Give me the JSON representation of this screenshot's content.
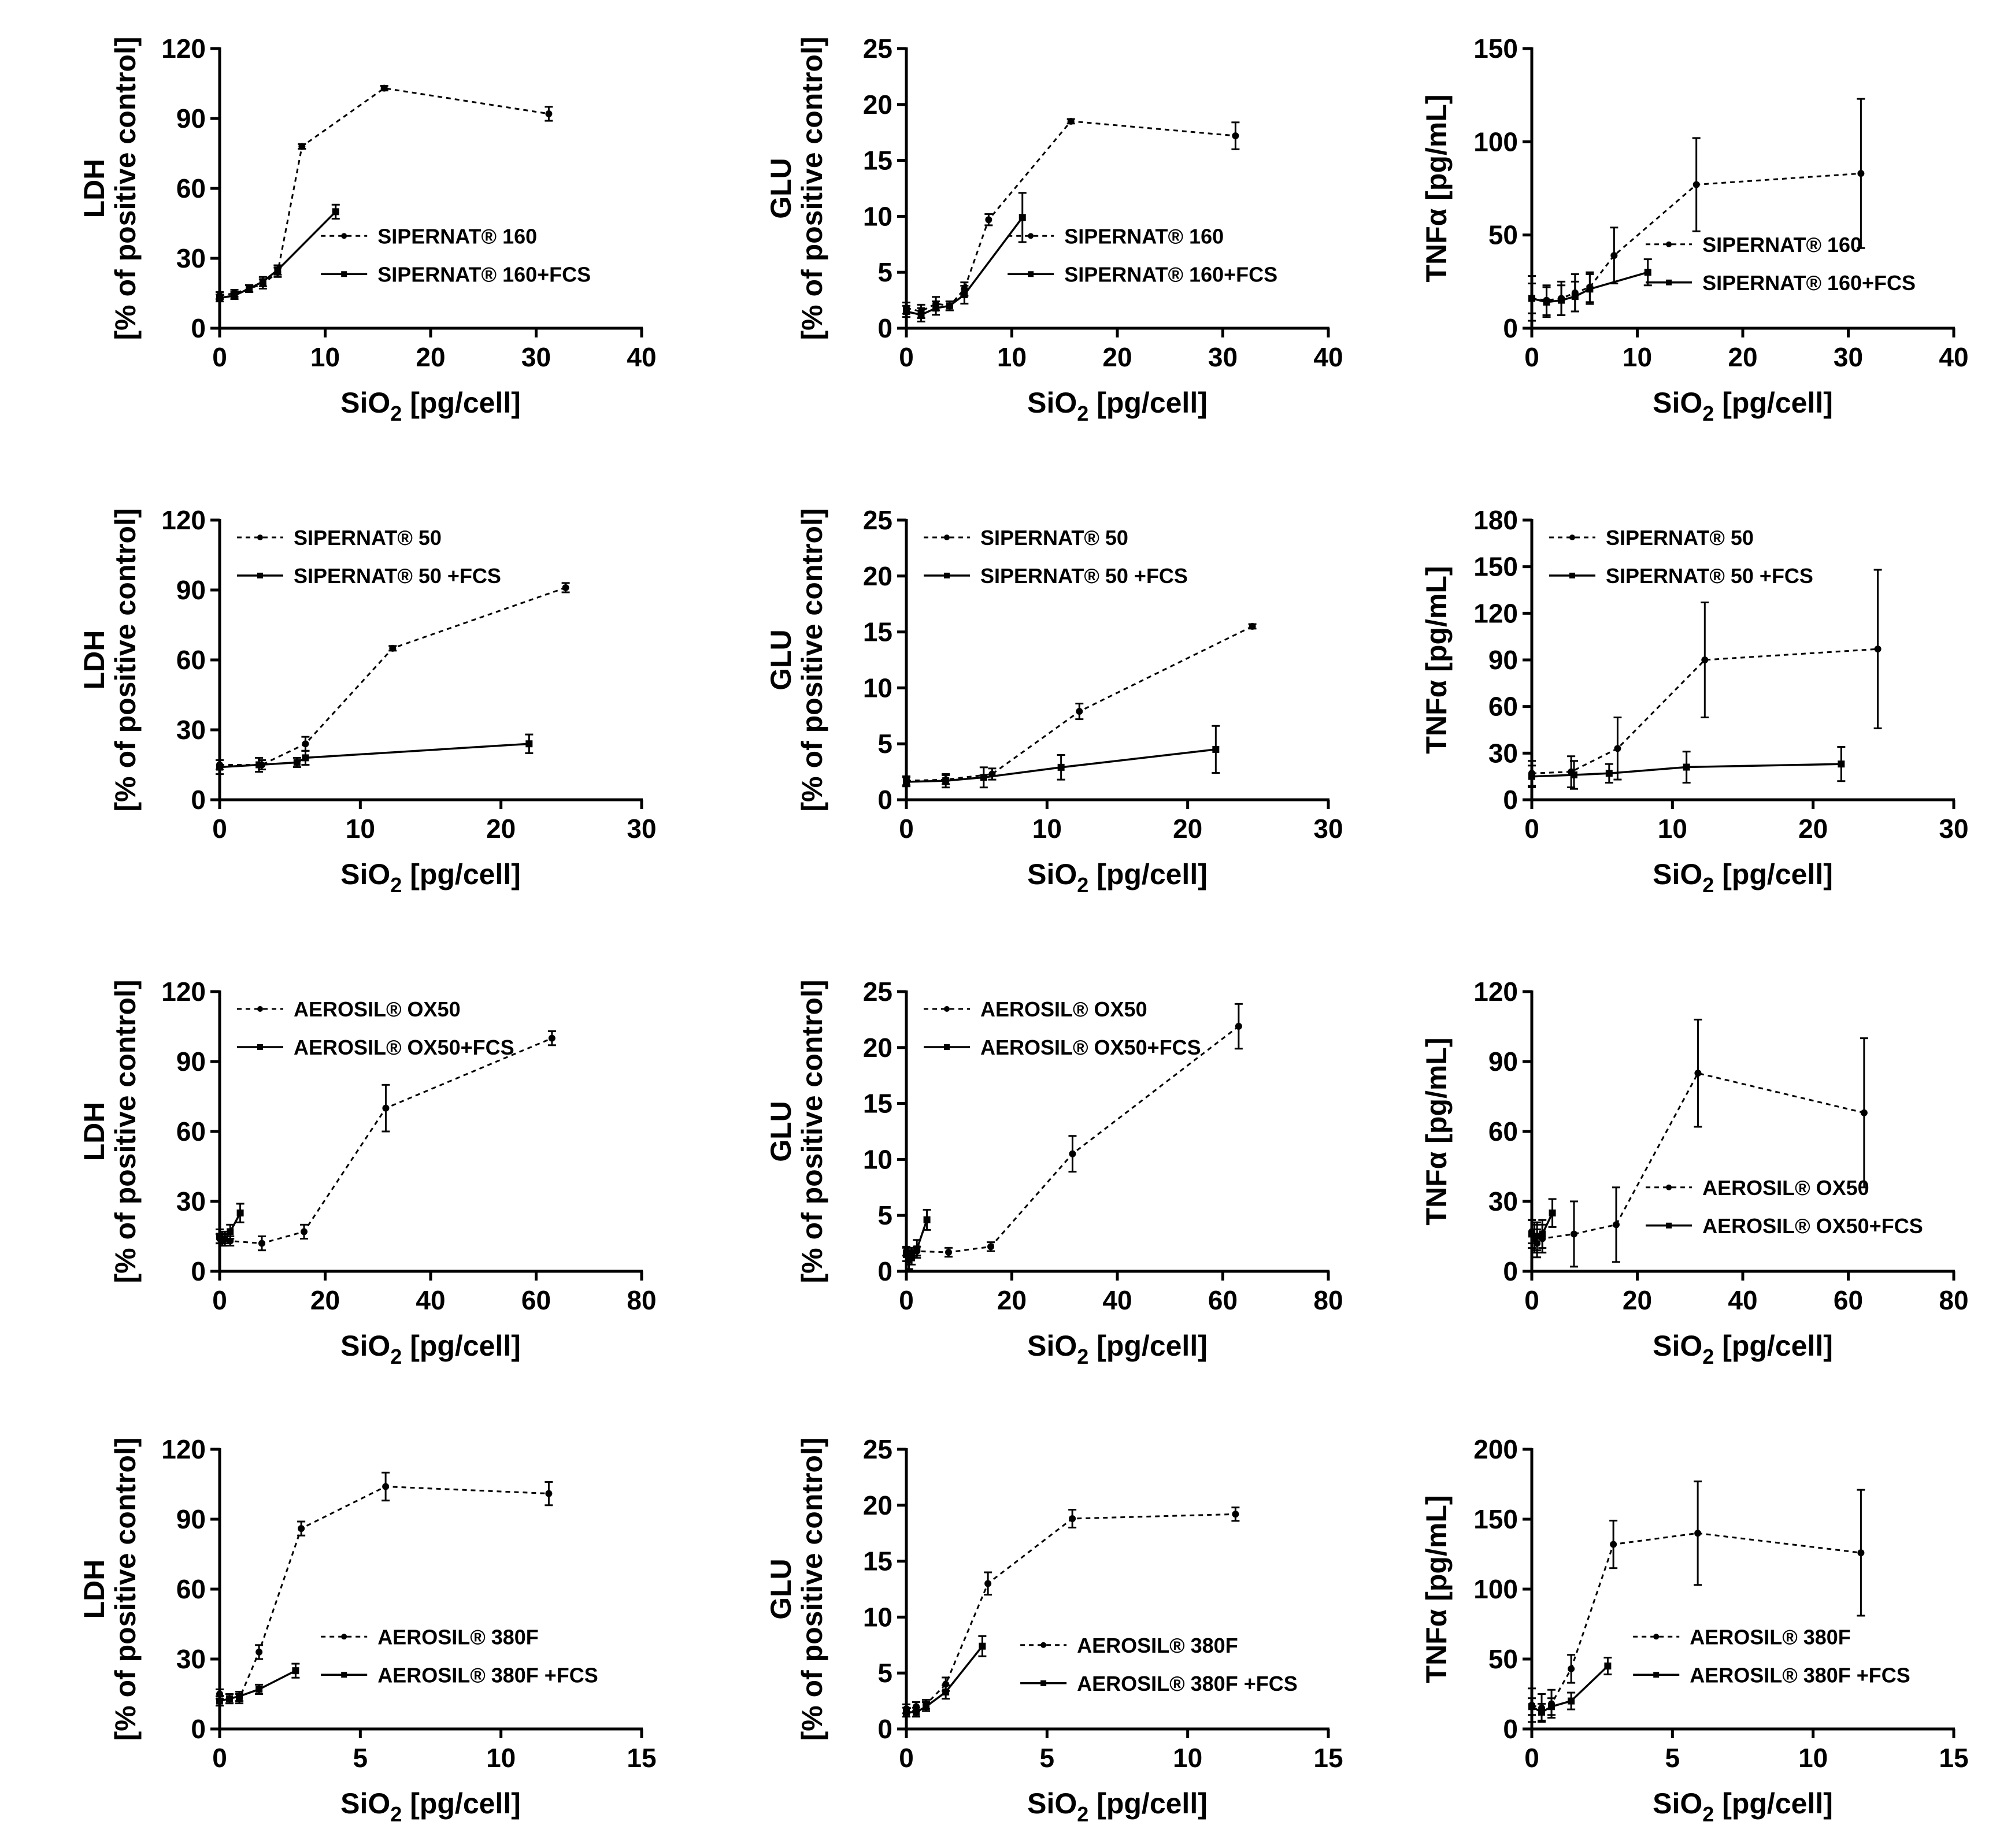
{
  "figure": {
    "x_axis_label": {
      "main": "SiO",
      "sub": "2",
      "rest": " [pg/cell]"
    }
  },
  "chart_data": [
    {
      "type": "line",
      "ylabel": "LDH",
      "ylabel2": "[% of positive control]",
      "xlim": [
        0,
        40
      ],
      "xticks": [
        0,
        10,
        20,
        30,
        40
      ],
      "ylim": [
        0,
        120
      ],
      "yticks": [
        0,
        30,
        60,
        90,
        120
      ],
      "legend_position": "right-middle",
      "series": [
        {
          "name": "SIPERNAT® 160",
          "style": "dotted",
          "x": [
            0,
            1.4,
            2.8,
            4.1,
            5.5,
            7.8,
            15.6,
            31.2
          ],
          "y": [
            14,
            15,
            17,
            19,
            24,
            78,
            103,
            92
          ],
          "err": [
            1.5,
            1.5,
            1.5,
            2,
            2,
            1,
            1,
            3
          ]
        },
        {
          "name": "SIPERNAT® 160+FCS",
          "style": "solid",
          "x": [
            0,
            1.4,
            2.8,
            4.1,
            5.5,
            11
          ],
          "y": [
            13,
            14,
            17,
            20,
            25,
            50
          ],
          "err": [
            1.5,
            1.5,
            1.5,
            2,
            2,
            3
          ]
        }
      ]
    },
    {
      "type": "line",
      "ylabel": "GLU",
      "ylabel2": "[% of positive control]",
      "xlim": [
        0,
        40
      ],
      "xticks": [
        0,
        10,
        20,
        30,
        40
      ],
      "ylim": [
        0,
        25
      ],
      "yticks": [
        0,
        5,
        10,
        15,
        20,
        25
      ],
      "legend_position": "right-middle",
      "series": [
        {
          "name": "SIPERNAT® 160",
          "style": "dotted",
          "x": [
            0,
            1.4,
            2.8,
            4.1,
            5.5,
            7.8,
            15.6,
            31.2
          ],
          "y": [
            1.8,
            1.5,
            2.2,
            2.0,
            3.5,
            9.7,
            18.5,
            17.2
          ],
          "err": [
            0.5,
            0.6,
            0.6,
            0.4,
            0.6,
            0.5,
            0.2,
            1.2
          ]
        },
        {
          "name": "SIPERNAT® 160+FCS",
          "style": "solid",
          "x": [
            0,
            1.4,
            2.8,
            4.1,
            5.5,
            11
          ],
          "y": [
            1.5,
            1.2,
            1.8,
            2.0,
            3.0,
            9.9
          ],
          "err": [
            0.5,
            0.6,
            0.6,
            0.4,
            0.8,
            2.2
          ]
        }
      ]
    },
    {
      "type": "line",
      "ylabel": "TNFα [pg/mL]",
      "ylabel2": "",
      "xlim": [
        0,
        40
      ],
      "xticks": [
        0,
        10,
        20,
        30,
        40
      ],
      "ylim": [
        0,
        150
      ],
      "yticks": [
        0,
        50,
        100,
        150
      ],
      "legend_position": "right-lower",
      "series": [
        {
          "name": "SIPERNAT® 160",
          "style": "dotted",
          "x": [
            0,
            1.4,
            2.8,
            4.1,
            5.5,
            7.8,
            15.6,
            31.2
          ],
          "y": [
            16,
            15,
            16,
            19,
            22,
            39,
            77,
            83
          ],
          "err": [
            12,
            8,
            9,
            10,
            8,
            15,
            25,
            40
          ]
        },
        {
          "name": "SIPERNAT® 160+FCS",
          "style": "solid",
          "x": [
            0,
            1.4,
            2.8,
            4.1,
            5.5,
            11
          ],
          "y": [
            16,
            14,
            15,
            17,
            21,
            30
          ],
          "err": [
            8,
            8,
            8,
            8,
            8,
            7
          ]
        }
      ]
    },
    {
      "type": "line",
      "ylabel": "LDH",
      "ylabel2": "[% of positive control]",
      "xlim": [
        0,
        30
      ],
      "xticks": [
        0,
        10,
        20,
        30
      ],
      "ylim": [
        0,
        120
      ],
      "yticks": [
        0,
        30,
        60,
        90,
        120
      ],
      "legend_position": "top-left",
      "series": [
        {
          "name": "SIPERNAT® 50",
          "style": "dotted",
          "x": [
            0,
            3,
            6.1,
            12.3,
            24.6
          ],
          "y": [
            15,
            15,
            24,
            65,
            91
          ],
          "err": [
            2,
            2,
            3,
            1,
            2
          ]
        },
        {
          "name": "SIPERNAT® 50 +FCS",
          "style": "solid",
          "x": [
            0,
            2.8,
            5.5,
            6.1,
            22
          ],
          "y": [
            14,
            15,
            16,
            18,
            24
          ],
          "err": [
            3,
            3,
            2,
            3,
            4
          ]
        }
      ]
    },
    {
      "type": "line",
      "ylabel": "GLU",
      "ylabel2": "[% of positive control]",
      "xlim": [
        0,
        30
      ],
      "xticks": [
        0,
        10,
        20,
        30
      ],
      "ylim": [
        0,
        25
      ],
      "yticks": [
        0,
        5,
        10,
        15,
        20,
        25
      ],
      "legend_position": "top-left",
      "series": [
        {
          "name": "SIPERNAT® 50",
          "style": "dotted",
          "x": [
            0,
            2.8,
            6.1,
            12.3,
            24.6
          ],
          "y": [
            1.7,
            1.8,
            2.3,
            7.9,
            15.5
          ],
          "err": [
            0.4,
            0.4,
            0.5,
            0.7,
            0.2
          ]
        },
        {
          "name": "SIPERNAT® 50 +FCS",
          "style": "solid",
          "x": [
            0,
            2.8,
            5.5,
            11,
            22
          ],
          "y": [
            1.6,
            1.7,
            2.0,
            2.9,
            4.5
          ],
          "err": [
            0.4,
            0.6,
            0.9,
            1.1,
            2.1
          ]
        }
      ]
    },
    {
      "type": "line",
      "ylabel": "TNFα [pg/mL]",
      "ylabel2": "",
      "xlim": [
        0,
        30
      ],
      "xticks": [
        0,
        10,
        20,
        30
      ],
      "ylim": [
        0,
        180
      ],
      "yticks": [
        0,
        30,
        60,
        90,
        120,
        150,
        180
      ],
      "legend_position": "top-left",
      "series": [
        {
          "name": "SIPERNAT® 50",
          "style": "dotted",
          "x": [
            0,
            2.8,
            6.1,
            12.3,
            24.6
          ],
          "y": [
            17,
            18,
            33,
            90,
            97
          ],
          "err": [
            8,
            10,
            20,
            37,
            51
          ]
        },
        {
          "name": "SIPERNAT® 50 +FCS",
          "style": "solid",
          "x": [
            0,
            3,
            5.5,
            11,
            22
          ],
          "y": [
            15,
            16,
            17,
            21,
            23
          ],
          "err": [
            7,
            9,
            6,
            10,
            11
          ]
        }
      ]
    },
    {
      "type": "line",
      "ylabel": "LDH",
      "ylabel2": "[% of positive control]",
      "xlim": [
        0,
        80
      ],
      "xticks": [
        0,
        20,
        40,
        60,
        80
      ],
      "ylim": [
        0,
        120
      ],
      "yticks": [
        0,
        30,
        60,
        90,
        120
      ],
      "legend_position": "top-left",
      "series": [
        {
          "name": "AEROSIL® OX50",
          "style": "dotted",
          "x": [
            0,
            0.5,
            1,
            2,
            8,
            16,
            31.5,
            63
          ],
          "y": [
            14,
            13,
            14,
            13,
            12,
            17,
            70,
            100
          ],
          "err": [
            2,
            2,
            2,
            2,
            3,
            3,
            10,
            3
          ]
        },
        {
          "name": "AEROSIL® OX50+FCS",
          "style": "solid",
          "x": [
            0,
            0.5,
            1,
            2,
            3.9
          ],
          "y": [
            15,
            14,
            14,
            17,
            25
          ],
          "err": [
            3,
            3,
            3,
            3,
            4
          ]
        }
      ]
    },
    {
      "type": "line",
      "ylabel": "GLU",
      "ylabel2": "[% of positive control]",
      "xlim": [
        0,
        80
      ],
      "xticks": [
        0,
        20,
        40,
        60,
        80
      ],
      "ylim": [
        0,
        25
      ],
      "yticks": [
        0,
        5,
        10,
        15,
        20,
        25
      ],
      "legend_position": "top-left",
      "series": [
        {
          "name": "AEROSIL® OX50",
          "style": "dotted",
          "x": [
            0,
            0.5,
            1,
            2,
            8,
            16,
            31.5,
            63
          ],
          "y": [
            1.8,
            1.5,
            1.7,
            1.8,
            1.7,
            2.2,
            10.5,
            21.9
          ],
          "err": [
            0.4,
            0.4,
            0.4,
            0.4,
            0.4,
            0.4,
            1.6,
            2.0
          ]
        },
        {
          "name": "AEROSIL® OX50+FCS",
          "style": "solid",
          "x": [
            0,
            0.5,
            1,
            2,
            3.9
          ],
          "y": [
            1.5,
            1.0,
            1.2,
            2.0,
            4.6
          ],
          "err": [
            0.6,
            0.8,
            0.6,
            0.8,
            0.9
          ]
        }
      ]
    },
    {
      "type": "line",
      "ylabel": "TNFα [pg/mL]",
      "ylabel2": "",
      "xlim": [
        0,
        80
      ],
      "xticks": [
        0,
        20,
        40,
        60,
        80
      ],
      "ylim": [
        0,
        120
      ],
      "yticks": [
        0,
        30,
        60,
        90,
        120
      ],
      "legend_position": "right-lower",
      "series": [
        {
          "name": "AEROSIL® OX50",
          "style": "dotted",
          "x": [
            0,
            0.5,
            1,
            2,
            8,
            16,
            31.5,
            63
          ],
          "y": [
            17,
            15,
            12,
            14,
            16,
            20,
            85,
            68
          ],
          "err": [
            5,
            6,
            6,
            6,
            14,
            16,
            23,
            32
          ]
        },
        {
          "name": "AEROSIL® OX50+FCS",
          "style": "solid",
          "x": [
            0,
            0.5,
            1,
            2,
            3.9
          ],
          "y": [
            16,
            14,
            15,
            16,
            25
          ],
          "err": [
            6,
            6,
            6,
            6,
            6
          ]
        }
      ]
    },
    {
      "type": "line",
      "ylabel": "LDH",
      "ylabel2": "[% of positive control]",
      "xlim": [
        0,
        15
      ],
      "xticks": [
        0,
        5,
        10,
        15
      ],
      "ylim": [
        0,
        120
      ],
      "yticks": [
        0,
        30,
        60,
        90,
        120
      ],
      "legend_position": "right-middle",
      "series": [
        {
          "name": "AEROSIL® 380F",
          "style": "dotted",
          "x": [
            0,
            0.35,
            0.7,
            1.4,
            2.9,
            5.9,
            11.7
          ],
          "y": [
            15,
            13,
            13,
            33,
            86,
            104,
            101
          ],
          "err": [
            2,
            2,
            2,
            3,
            3,
            6,
            5
          ]
        },
        {
          "name": "AEROSIL® 380F +FCS",
          "style": "solid",
          "x": [
            0,
            0.35,
            0.7,
            1.4,
            2.7
          ],
          "y": [
            12,
            13,
            14,
            17,
            25
          ],
          "err": [
            2,
            2,
            2,
            2,
            3
          ]
        }
      ]
    },
    {
      "type": "line",
      "ylabel": "GLU",
      "ylabel2": "[% of positive control]",
      "xlim": [
        0,
        15
      ],
      "xticks": [
        0,
        5,
        10,
        15
      ],
      "ylim": [
        0,
        25
      ],
      "yticks": [
        0,
        5,
        10,
        15,
        20,
        25
      ],
      "legend_position": "right-lower",
      "series": [
        {
          "name": "AEROSIL® 380F",
          "style": "dotted",
          "x": [
            0,
            0.35,
            0.7,
            1.4,
            2.9,
            5.9,
            11.7
          ],
          "y": [
            1.8,
            2.0,
            2.2,
            4.0,
            13.0,
            18.8,
            19.2
          ],
          "err": [
            0.4,
            0.4,
            0.4,
            0.6,
            1.0,
            0.8,
            0.6
          ]
        },
        {
          "name": "AEROSIL® 380F +FCS",
          "style": "solid",
          "x": [
            0,
            0.35,
            0.7,
            1.4,
            2.7
          ],
          "y": [
            1.5,
            1.5,
            2.0,
            3.3,
            7.4
          ],
          "err": [
            0.4,
            0.4,
            0.4,
            0.6,
            0.9
          ]
        }
      ]
    },
    {
      "type": "line",
      "ylabel": "TNFα [pg/mL]",
      "ylabel2": "",
      "xlim": [
        0,
        15
      ],
      "xticks": [
        0,
        5,
        10,
        15
      ],
      "ylim": [
        0,
        200
      ],
      "yticks": [
        0,
        50,
        100,
        150,
        200
      ],
      "legend_position": "right-middle",
      "series": [
        {
          "name": "AEROSIL® 380F",
          "style": "dotted",
          "x": [
            0,
            0.35,
            0.7,
            1.4,
            2.9,
            5.9,
            11.7
          ],
          "y": [
            17,
            15,
            18,
            43,
            132,
            140,
            126
          ],
          "err": [
            12,
            10,
            10,
            10,
            17,
            37,
            45
          ]
        },
        {
          "name": "AEROSIL® 380F +FCS",
          "style": "solid",
          "x": [
            0,
            0.35,
            0.7,
            1.4,
            2.7
          ],
          "y": [
            16,
            12,
            16,
            20,
            45
          ],
          "err": [
            6,
            6,
            6,
            6,
            6
          ]
        }
      ]
    }
  ]
}
